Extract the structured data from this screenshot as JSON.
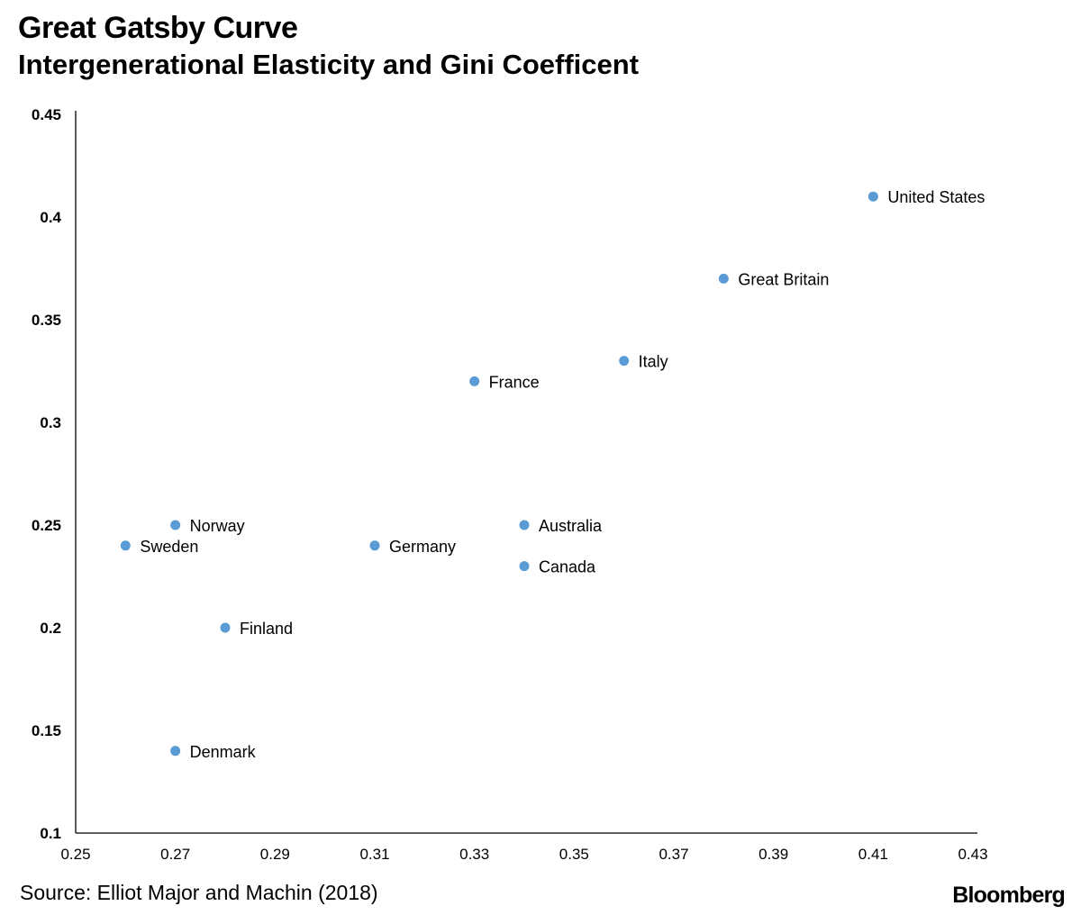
{
  "header": {
    "title": "Great Gatsby Curve",
    "subtitle": "Intergenerational Elasticity and Gini Coefficent"
  },
  "footer": {
    "source": "Source: Elliot Major and Machin (2018)",
    "brand": "Bloomberg"
  },
  "colors": {
    "point": "#5b9bd5",
    "axis": "#000000"
  },
  "chart_data": {
    "type": "scatter",
    "title": "Great Gatsby Curve",
    "subtitle": "Intergenerational Elasticity and Gini Coefficent",
    "xlabel": "",
    "ylabel": "",
    "xlim": [
      0.25,
      0.43
    ],
    "ylim": [
      0.1,
      0.45
    ],
    "x_ticks": [
      "0.25",
      "0.27",
      "0.29",
      "0.31",
      "0.33",
      "0.35",
      "0.37",
      "0.39",
      "0.41",
      "0.43"
    ],
    "y_ticks": [
      "0.1",
      "0.15",
      "0.2",
      "0.25",
      "0.3",
      "0.35",
      "0.4",
      "0.45"
    ],
    "grid": false,
    "legend": "none",
    "points": [
      {
        "label": "United States",
        "x": 0.41,
        "y": 0.41
      },
      {
        "label": "Great Britain",
        "x": 0.38,
        "y": 0.37
      },
      {
        "label": "Italy",
        "x": 0.36,
        "y": 0.33
      },
      {
        "label": "France",
        "x": 0.33,
        "y": 0.32
      },
      {
        "label": "Norway",
        "x": 0.27,
        "y": 0.25
      },
      {
        "label": "Australia",
        "x": 0.34,
        "y": 0.25
      },
      {
        "label": "Sweden",
        "x": 0.26,
        "y": 0.24
      },
      {
        "label": "Germany",
        "x": 0.31,
        "y": 0.24
      },
      {
        "label": "Canada",
        "x": 0.34,
        "y": 0.23
      },
      {
        "label": "Finland",
        "x": 0.28,
        "y": 0.2
      },
      {
        "label": "Denmark",
        "x": 0.27,
        "y": 0.14
      }
    ]
  }
}
